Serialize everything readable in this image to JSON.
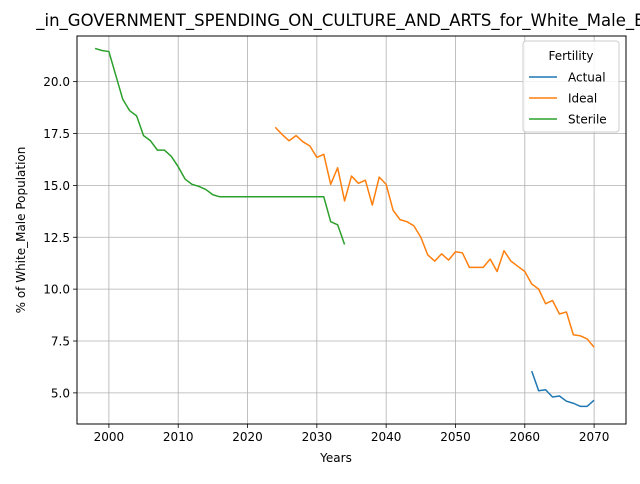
{
  "chart_data": {
    "type": "line",
    "title": "_in_GOVERNMENT_SPENDING_ON_CULTURE_AND_ARTS_for_White_Male_Below",
    "xlabel": "Years",
    "ylabel": "% of White_Male Population",
    "xlim": [
      1995.4,
      2074.6
    ],
    "ylim": [
      3.5,
      22.2
    ],
    "xticks": [
      2000,
      2010,
      2020,
      2030,
      2040,
      2050,
      2060,
      2070
    ],
    "yticks": [
      5.0,
      7.5,
      10.0,
      12.5,
      15.0,
      17.5,
      20.0
    ],
    "xtick_labels": [
      "2000",
      "2010",
      "2020",
      "2030",
      "2040",
      "2050",
      "2060",
      "2070"
    ],
    "ytick_labels": [
      "5.0",
      "7.5",
      "10.0",
      "12.5",
      "15.0",
      "17.5",
      "20.0"
    ],
    "grid": true,
    "legend": {
      "title": "Fertility",
      "placement": "top-right"
    },
    "series": [
      {
        "name": "Actual",
        "color": "#1f77b4",
        "x": [
          2061,
          2062,
          2063,
          2064,
          2065,
          2066,
          2067,
          2068,
          2069,
          2070
        ],
        "y": [
          6.05,
          5.1,
          5.15,
          4.8,
          4.85,
          4.6,
          4.5,
          4.35,
          4.35,
          4.65
        ]
      },
      {
        "name": "Ideal",
        "color": "#ff7f0e",
        "x": [
          2024,
          2025,
          2026,
          2027,
          2028,
          2029,
          2030,
          2031,
          2032,
          2033,
          2034,
          2035,
          2036,
          2037,
          2038,
          2039,
          2040,
          2041,
          2042,
          2043,
          2044,
          2045,
          2046,
          2047,
          2048,
          2049,
          2050,
          2051,
          2052,
          2053,
          2054,
          2055,
          2056,
          2057,
          2058,
          2059,
          2060,
          2061,
          2062,
          2063,
          2064,
          2065,
          2066,
          2067,
          2068,
          2069,
          2070
        ],
        "y": [
          17.8,
          17.45,
          17.15,
          17.4,
          17.1,
          16.9,
          16.35,
          16.5,
          15.05,
          15.85,
          14.25,
          15.45,
          15.1,
          15.25,
          14.05,
          15.4,
          15.05,
          13.8,
          13.35,
          13.25,
          13.05,
          12.5,
          11.65,
          11.35,
          11.7,
          11.4,
          11.8,
          11.75,
          11.05,
          11.05,
          11.05,
          11.45,
          10.85,
          11.85,
          11.35,
          11.1,
          10.85,
          10.25,
          10.0,
          9.3,
          9.45,
          8.8,
          8.9,
          7.8,
          7.75,
          7.6,
          7.2
        ]
      },
      {
        "name": "Sterile",
        "color": "#2ca02c",
        "x": [
          1998,
          1999,
          2000,
          2001,
          2002,
          2003,
          2004,
          2005,
          2006,
          2007,
          2008,
          2009,
          2010,
          2011,
          2012,
          2013,
          2014,
          2015,
          2016,
          2017,
          2018,
          2019,
          2020,
          2021,
          2022,
          2023,
          2024,
          2025,
          2026,
          2027,
          2028,
          2029,
          2030,
          2031,
          2032,
          2033,
          2034
        ],
        "y": [
          21.6,
          21.5,
          21.45,
          20.3,
          19.15,
          18.6,
          18.35,
          17.4,
          17.15,
          16.7,
          16.7,
          16.4,
          15.9,
          15.3,
          15.05,
          14.95,
          14.8,
          14.55,
          14.45,
          14.45,
          14.45,
          14.45,
          14.45,
          14.45,
          14.45,
          14.45,
          14.45,
          14.45,
          14.45,
          14.45,
          14.45,
          14.45,
          14.45,
          14.45,
          13.25,
          13.1,
          12.15
        ]
      }
    ]
  }
}
